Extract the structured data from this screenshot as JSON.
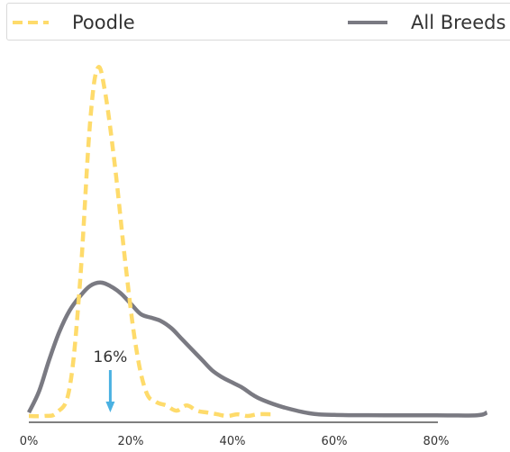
{
  "chart_data": {
    "type": "line",
    "x_ticks": [
      "0%",
      "20%",
      "40%",
      "60%",
      "80%"
    ],
    "x_range": [
      0,
      90
    ],
    "legend": {
      "position": "top",
      "entries": [
        "Poodle",
        "All Breeds"
      ]
    },
    "series": [
      {
        "name": "Poodle",
        "style": "dashed",
        "color": "#fedb6b",
        "x": [
          0,
          3,
          5.5,
          8,
          10,
          12,
          13.5,
          15,
          17,
          19,
          21,
          23,
          25,
          27,
          29,
          31,
          33,
          35,
          37,
          39,
          41,
          43,
          45,
          47.5
        ],
        "y": [
          0.0,
          0.0,
          0.01,
          0.08,
          0.37,
          0.83,
          0.99,
          0.92,
          0.7,
          0.43,
          0.2,
          0.07,
          0.04,
          0.03,
          0.015,
          0.03,
          0.015,
          0.01,
          0.005,
          0.0,
          0.005,
          0.0,
          0.005,
          0.005
        ]
      },
      {
        "name": "All Breeds",
        "color": "#7a7a82",
        "x": [
          0,
          2,
          4,
          6,
          8,
          10,
          12,
          14,
          16,
          18,
          20,
          22,
          24,
          26,
          28,
          30,
          32,
          34,
          36,
          38,
          40,
          42,
          44,
          46,
          50,
          55,
          60,
          70,
          80,
          88,
          90
        ],
        "y": [
          0.01,
          0.07,
          0.16,
          0.24,
          0.3,
          0.34,
          0.37,
          0.38,
          0.37,
          0.35,
          0.32,
          0.29,
          0.28,
          0.27,
          0.25,
          0.22,
          0.19,
          0.16,
          0.13,
          0.11,
          0.095,
          0.08,
          0.06,
          0.045,
          0.025,
          0.008,
          0.003,
          0.002,
          0.002,
          0.002,
          0.01
        ]
      }
    ],
    "annotation": {
      "label": "16%",
      "x": 16,
      "color": "#4ab1e2"
    }
  }
}
